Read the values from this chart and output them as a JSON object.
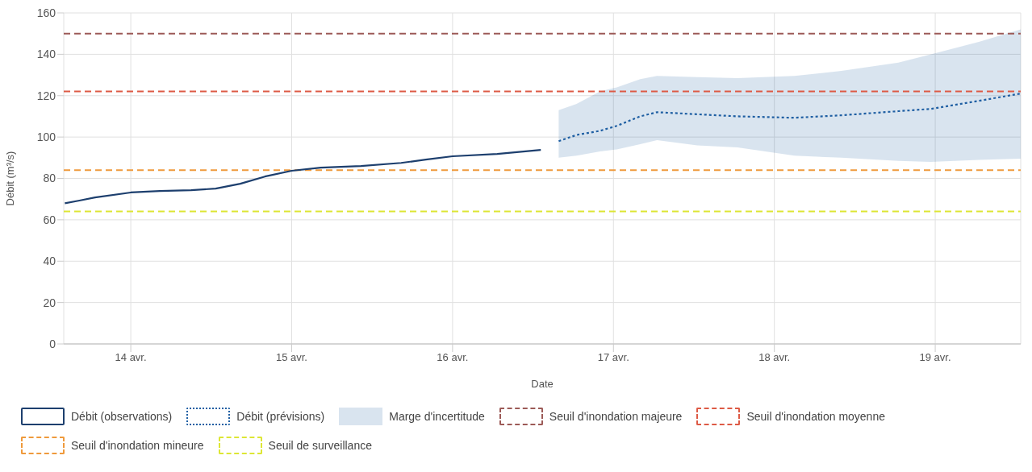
{
  "chart_data": {
    "type": "line",
    "xlabel": "Date",
    "ylabel": "Débit (m³/s)",
    "xlim": [
      "--04-13T14:00",
      "--04-19T12:45"
    ],
    "xticks": [
      {
        "value": "--04-14",
        "label": "14 avr."
      },
      {
        "value": "--04-15",
        "label": "15 avr."
      },
      {
        "value": "--04-16",
        "label": "16 avr."
      },
      {
        "value": "--04-17",
        "label": "17 avr."
      },
      {
        "value": "--04-18",
        "label": "18 avr."
      },
      {
        "value": "--04-19",
        "label": "19 avr."
      }
    ],
    "ylim": [
      0,
      160
    ],
    "yticks": [
      0,
      20,
      40,
      60,
      80,
      100,
      120,
      140,
      160
    ],
    "grid": true,
    "legend": "bottom",
    "series": [
      {
        "name": "Débit (observations)",
        "color": "#1d3f6e",
        "line_style": "solid",
        "x": [
          "--04-13T14:10",
          "--04-13T16:20",
          "--04-13T18:40",
          "--04-14T00:00",
          "--04-14T04:20",
          "--04-14T09:00",
          "--04-14T12:40",
          "--04-14T16:20",
          "--04-14T20:00",
          "--04-15T00:00",
          "--04-15T04:20",
          "--04-15T10:20",
          "--04-15T16:20",
          "--04-15T20:00",
          "--04-16T00:00",
          "--04-16T06:40",
          "--04-16T13:10"
        ],
        "values": [
          68,
          69.3,
          70.8,
          73.2,
          73.9,
          74.3,
          75.1,
          77.4,
          80.9,
          83.7,
          85.2,
          86,
          87.5,
          89.1,
          90.7,
          91.8,
          93.8
        ]
      },
      {
        "name": "Débit (prévisions)",
        "color": "#1f5fa3",
        "line_style": "dotted",
        "x": [
          "--04-16T15:50",
          "--04-16T18:30",
          "--04-16T22:00",
          "--04-17T00:30",
          "--04-17T04:00",
          "--04-17T06:30",
          "--04-17T12:30",
          "--04-17T18:30",
          "--04-18T03:00",
          "--04-18T10:00",
          "--04-18T18:30",
          "--04-18T23:20",
          "--04-19T06:30",
          "--04-19T12:45"
        ],
        "values": [
          98,
          101,
          103,
          105.4,
          110,
          112,
          111,
          110,
          109.3,
          110.5,
          112.5,
          113.6,
          117.5,
          121
        ],
        "lower": [
          90,
          91,
          93,
          94,
          96.5,
          98.5,
          96,
          95,
          91,
          90,
          88.5,
          88,
          89,
          89.5
        ],
        "upper": [
          113,
          116,
          122,
          124,
          128,
          129.5,
          129,
          128.5,
          129.5,
          132,
          136,
          140,
          146,
          152
        ]
      }
    ],
    "annotations": [
      "Marge d'incertitude"
    ],
    "ref_lines": [
      {
        "axis": "y",
        "value": 150,
        "label": "Seuil d'inondation majeure",
        "color": "#9c5a57",
        "line_style": "dashed"
      },
      {
        "axis": "y",
        "value": 122,
        "label": "Seuil d'inondation moyenne",
        "color": "#dd5a45",
        "line_style": "dashed"
      },
      {
        "axis": "y",
        "value": 84,
        "label": "Seuil d'inondation mineure",
        "color": "#ef9a3c",
        "line_style": "dashed"
      },
      {
        "axis": "y",
        "value": 64,
        "label": "Seuil de surveillance",
        "color": "#dde635",
        "line_style": "dashed"
      }
    ]
  }
}
